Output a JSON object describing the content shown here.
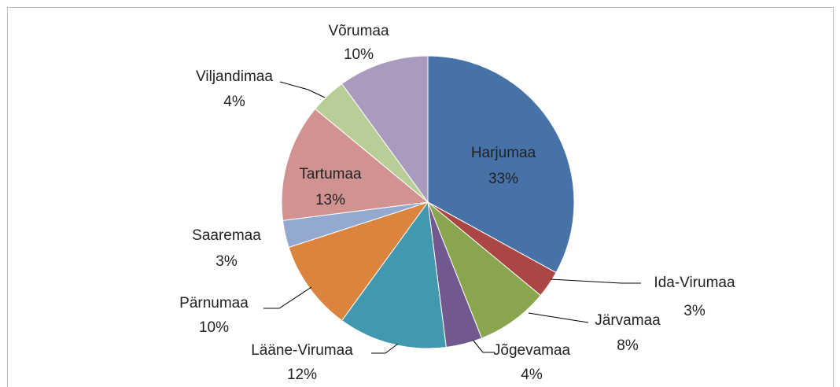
{
  "chart_data": {
    "type": "pie",
    "categories": [
      "Harjumaa",
      "Ida-Virumaa",
      "Järvamaa",
      "Jõgevamaa",
      "Lääne-Virumaa",
      "Pärnumaa",
      "Saaremaa",
      "Tartumaa",
      "Viljandimaa",
      "Võrumaa"
    ],
    "values": [
      33,
      3,
      8,
      4,
      12,
      10,
      3,
      13,
      4,
      10
    ],
    "value_labels": [
      "33%",
      "3%",
      "8%",
      "4%",
      "12%",
      "10%",
      "3%",
      "13%",
      "4%",
      "10%"
    ],
    "colors": [
      "#4672a8",
      "#aa4644",
      "#89a54e",
      "#71588f",
      "#4198af",
      "#db843d",
      "#93a9cf",
      "#d19392",
      "#b9cd96",
      "#a99bbd"
    ]
  }
}
